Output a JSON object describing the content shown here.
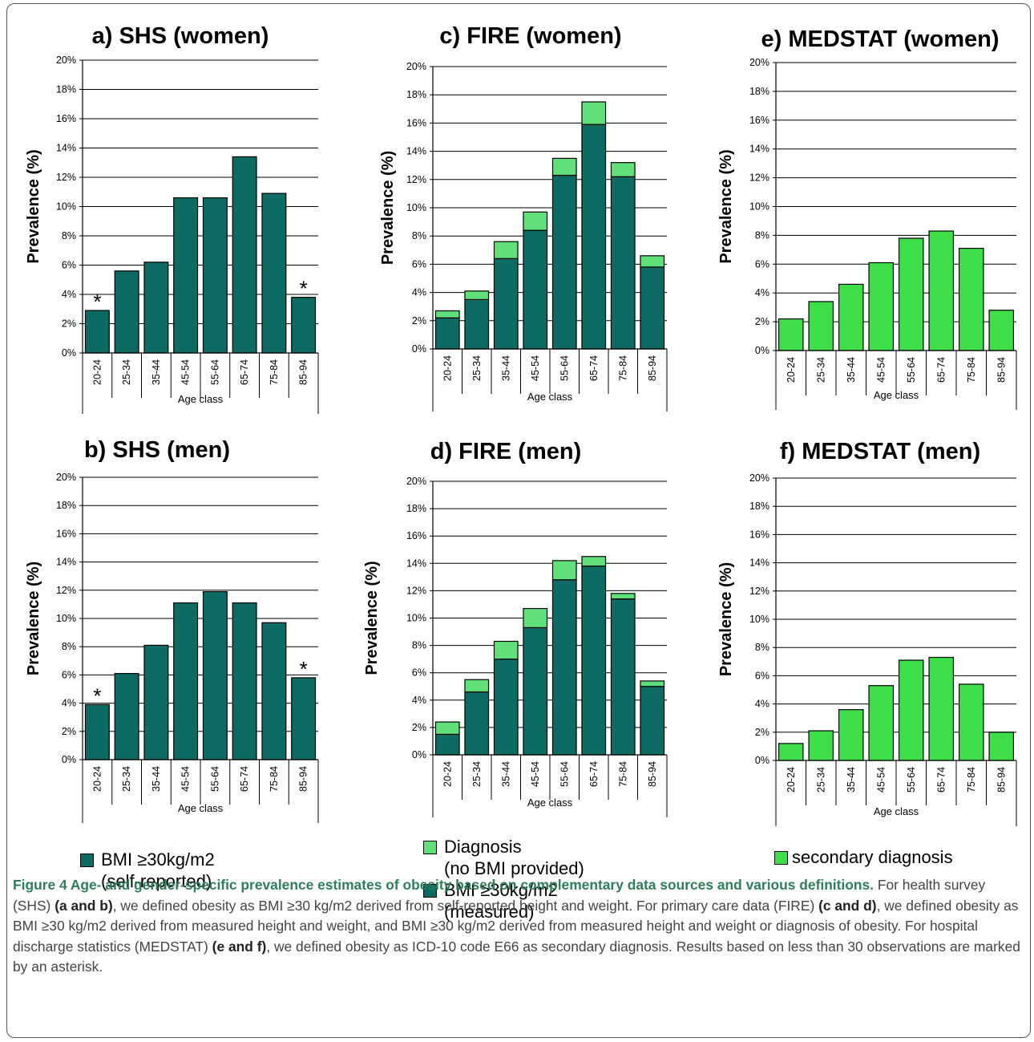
{
  "colors": {
    "dark": "#0e6b63",
    "light": "#5fe07a",
    "medstat": "#3ede4a",
    "grid": "#000000"
  },
  "shared": {
    "ylabel": "Prevalence (%)",
    "xlabel": "Age class",
    "yticks": [
      "0%",
      "2%",
      "4%",
      "6%",
      "8%",
      "10%",
      "12%",
      "14%",
      "16%",
      "18%",
      "20%"
    ],
    "categories": [
      "20-24",
      "25-34",
      "35-44",
      "45-54",
      "55-64",
      "65-74",
      "75-84",
      "85-94"
    ]
  },
  "chart_data": [
    {
      "id": "a",
      "type": "bar",
      "title": "a) SHS (women)",
      "ylim": [
        0,
        20
      ],
      "categories": [
        "20-24",
        "25-34",
        "35-44",
        "45-54",
        "55-64",
        "65-74",
        "75-84",
        "85-94"
      ],
      "series": [
        {
          "key": "bmi",
          "values": [
            2.9,
            5.6,
            6.2,
            10.6,
            10.6,
            13.4,
            10.9,
            3.8
          ]
        }
      ],
      "asterisk": [
        true,
        false,
        false,
        false,
        false,
        false,
        false,
        true
      ]
    },
    {
      "id": "b",
      "type": "bar",
      "title": "b) SHS (men)",
      "ylim": [
        0,
        20
      ],
      "categories": [
        "20-24",
        "25-34",
        "35-44",
        "45-54",
        "55-64",
        "65-74",
        "75-84",
        "85-94"
      ],
      "series": [
        {
          "key": "bmi",
          "values": [
            3.9,
            6.1,
            8.1,
            11.1,
            11.9,
            11.1,
            9.7,
            5.8
          ]
        }
      ],
      "asterisk": [
        true,
        false,
        false,
        false,
        false,
        false,
        false,
        true
      ]
    },
    {
      "id": "c",
      "type": "bar",
      "stacked": true,
      "title": "c) FIRE (women)",
      "ylim": [
        0,
        20
      ],
      "categories": [
        "20-24",
        "25-34",
        "35-44",
        "45-54",
        "55-64",
        "65-74",
        "75-84",
        "85-94"
      ],
      "series": [
        {
          "key": "bmi",
          "values": [
            2.2,
            3.5,
            6.4,
            8.4,
            12.3,
            15.9,
            12.2,
            5.8
          ]
        },
        {
          "key": "diagnosis",
          "values": [
            0.5,
            0.6,
            1.2,
            1.3,
            1.2,
            1.6,
            1.0,
            0.8
          ]
        }
      ]
    },
    {
      "id": "d",
      "type": "bar",
      "stacked": true,
      "title": "d) FIRE (men)",
      "ylim": [
        0,
        20
      ],
      "categories": [
        "20-24",
        "25-34",
        "35-44",
        "45-54",
        "55-64",
        "65-74",
        "75-84",
        "85-94"
      ],
      "series": [
        {
          "key": "bmi",
          "values": [
            1.5,
            4.6,
            7.0,
            9.3,
            12.8,
            13.8,
            11.4,
            5.0
          ]
        },
        {
          "key": "diagnosis",
          "values": [
            0.9,
            0.9,
            1.3,
            1.4,
            1.4,
            0.7,
            0.4,
            0.4
          ]
        }
      ]
    },
    {
      "id": "e",
      "type": "bar",
      "title": "e) MEDSTAT (women)",
      "ylim": [
        0,
        20
      ],
      "categories": [
        "20-24",
        "25-34",
        "35-44",
        "45-54",
        "55-64",
        "65-74",
        "75-84",
        "85-94"
      ],
      "series": [
        {
          "key": "secondary",
          "values": [
            2.2,
            3.4,
            4.6,
            6.1,
            7.8,
            8.3,
            7.1,
            2.8
          ]
        }
      ]
    },
    {
      "id": "f",
      "type": "bar",
      "title": "f) MEDSTAT (men)",
      "ylim": [
        0,
        20
      ],
      "categories": [
        "20-24",
        "25-34",
        "35-44",
        "45-54",
        "55-64",
        "65-74",
        "75-84",
        "85-94"
      ],
      "series": [
        {
          "key": "secondary",
          "values": [
            1.2,
            2.1,
            3.6,
            5.3,
            7.1,
            7.3,
            5.4,
            2.0
          ]
        }
      ]
    }
  ],
  "legends": {
    "shs": {
      "line1": "BMI ≥30kg/m2",
      "line2": "(self-reported)"
    },
    "fire": {
      "diag1": "Diagnosis",
      "diag2": "(no BMI provided)",
      "bmi1": "BMI ≥30kg/m2",
      "bmi2": "(measured)"
    },
    "medstat": {
      "line1": "secondary diagnosis"
    }
  },
  "asterisk_symbol": "*",
  "caption": {
    "title": "Figure 4 Age- and gender-specific prevalence estimates of obesity based on complementary data sources and various definitions.",
    "p1": "For health survey (SHS) ",
    "l1": "(a and b)",
    "p2": ", we defined obesity as BMI ≥30 kg/m2 derived from self-reported height and weight. For primary care data (FIRE) ",
    "l2": "(c and d)",
    "p3": ", we defined obesity as BMI ≥30 kg/m2 derived from measured height and weight, and BMI ≥30 kg/m2 derived from measured height and weight or diagnosis of obesity. For hospital discharge statistics (MEDSTAT) ",
    "l3": "(e and f)",
    "p4": ", we defined obesity as ICD-10 code E66 as secondary diagnosis. Results based on less than 30 observations are marked by an asterisk."
  }
}
